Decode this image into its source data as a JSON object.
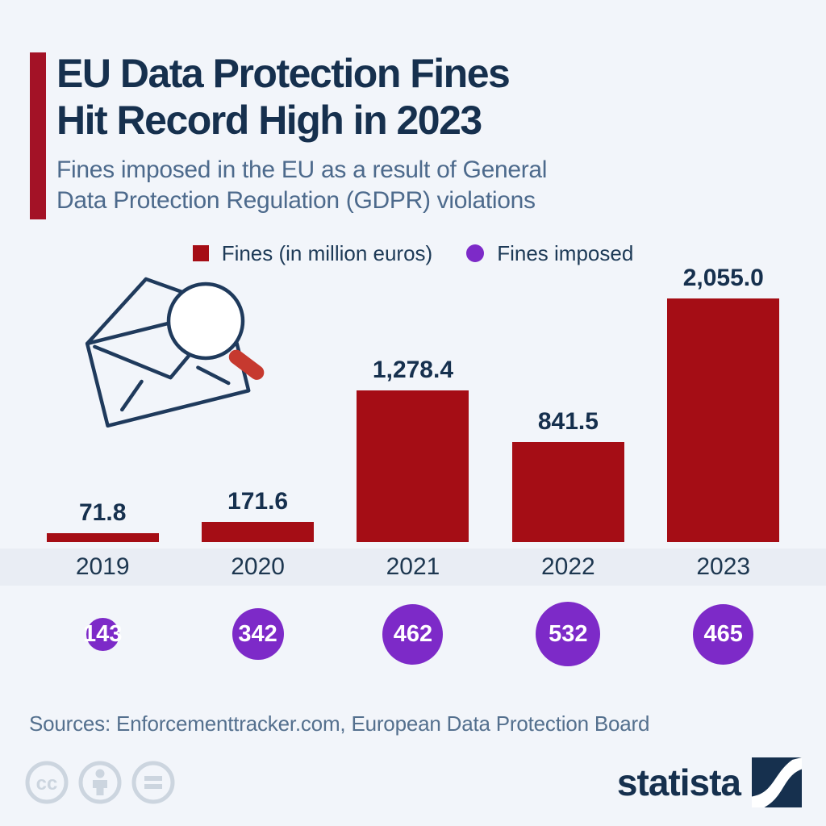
{
  "header": {
    "title_line1": "EU Data Protection Fines",
    "title_line2": "Hit Record High in 2023",
    "subtitle_line1": "Fines imposed in the EU as a result of General",
    "subtitle_line2": "Data Protection Regulation (GDPR) violations"
  },
  "legend": [
    {
      "label": "Fines (in million euros)",
      "marker": "square",
      "color": "#a50d15"
    },
    {
      "label": "Fines imposed",
      "marker": "circle",
      "color": "#7d2ac8"
    }
  ],
  "chart_data": {
    "type": "bar",
    "title": "EU Data Protection Fines Hit Record High in 2023",
    "subtitle": "Fines imposed in the EU as a result of General Data Protection Regulation (GDPR) violations",
    "categories": [
      "2019",
      "2020",
      "2021",
      "2022",
      "2023"
    ],
    "series": [
      {
        "name": "Fines (in million euros)",
        "values": [
          71.8,
          171.6,
          1278.4,
          841.5,
          2055.0
        ],
        "labels": [
          "71.8",
          "171.6",
          "1,278.4",
          "841.5",
          "2,055.0"
        ],
        "color": "#a50d15",
        "display": "bars"
      },
      {
        "name": "Fines imposed",
        "values": [
          143,
          342,
          462,
          532,
          465
        ],
        "labels": [
          "143",
          "342",
          "462",
          "532",
          "465"
        ],
        "color": "#7d2ac8",
        "display": "sized-circles"
      }
    ],
    "xlabel": "",
    "ylabel": "",
    "ylim": [
      0,
      2055
    ],
    "grid": false,
    "legend_position": "top-center"
  },
  "footer": {
    "sources": "Sources: Enforcementtracker.com, European Data Protection Board",
    "brand": "statista",
    "license_icons": [
      "cc-icon",
      "attribution-person-icon",
      "equals-icon"
    ]
  },
  "colors": {
    "background": "#f2f5fa",
    "accent_bar": "#a31226",
    "bar_red": "#a50d15",
    "circle_purple": "#7d2ac8",
    "title_navy": "#16304e",
    "subtitle_gray_blue": "#4d6a8c",
    "axis_band": "#e9edf4",
    "license_icon_gray": "#ccd5df",
    "magnifier_handle_red": "#c6392f"
  }
}
